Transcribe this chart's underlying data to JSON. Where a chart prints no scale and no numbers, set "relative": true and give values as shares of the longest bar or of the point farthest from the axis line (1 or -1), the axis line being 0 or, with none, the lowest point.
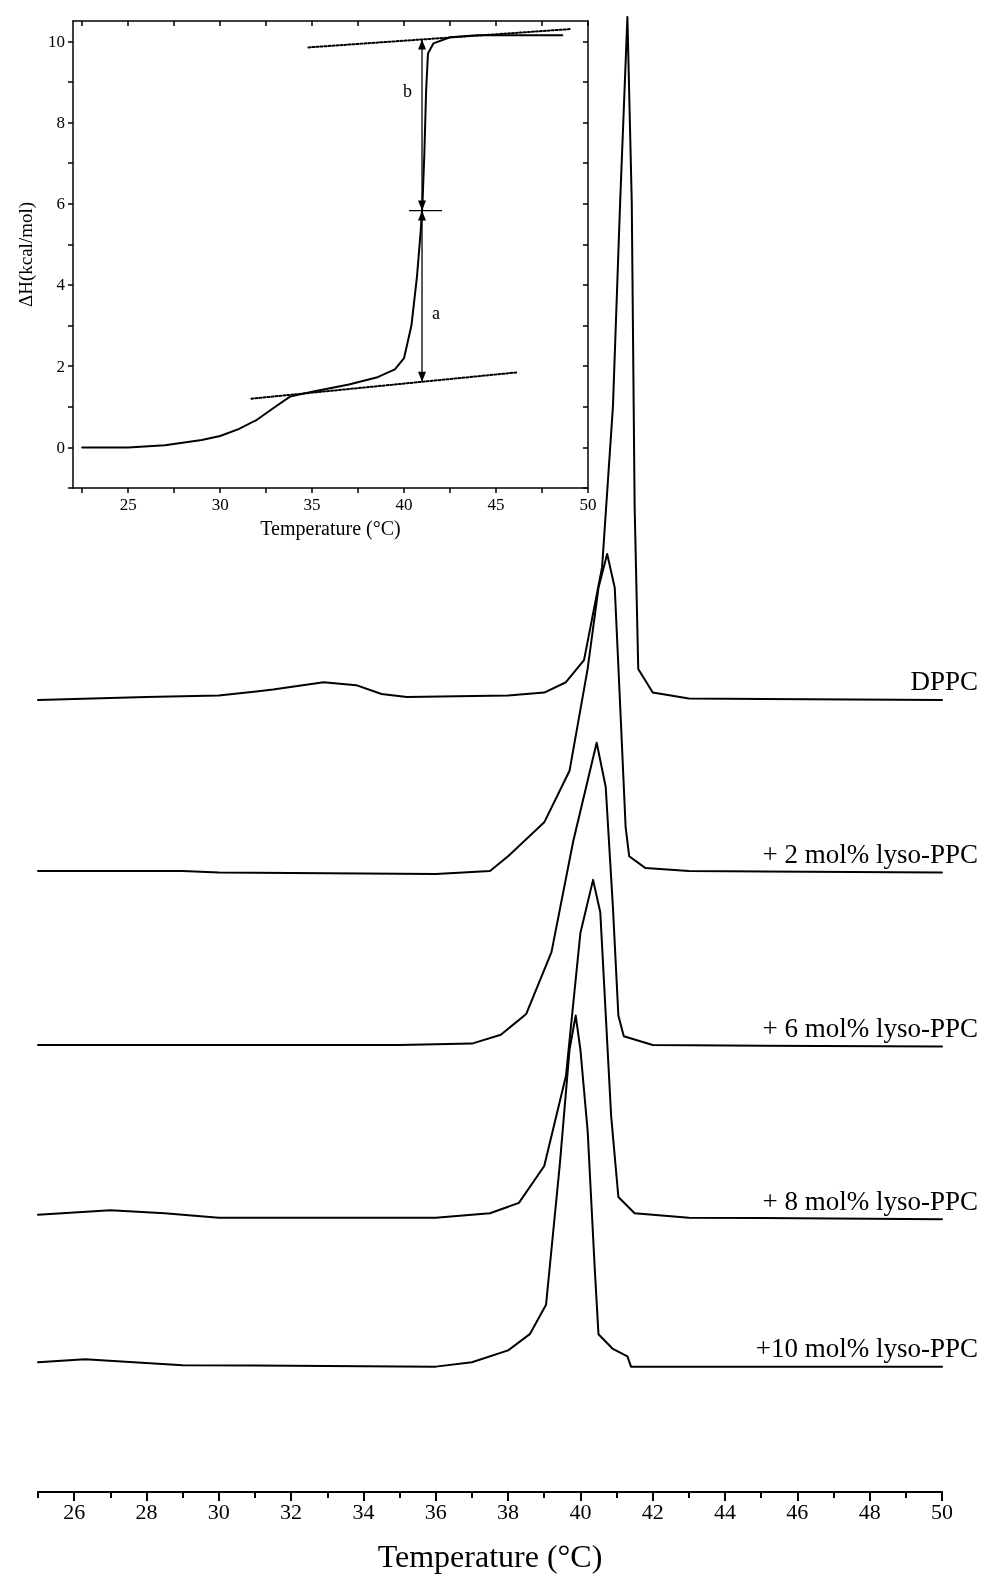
{
  "chart_data": [
    {
      "type": "line",
      "relative": true,
      "tick_labels": "x",
      "xlabel": "Temperature (°C)",
      "xlim": [
        25,
        50
      ],
      "xticks": [
        {
          "value": 25,
          "label": null
        },
        26,
        {
          "value": 27,
          "label": null
        },
        28,
        {
          "value": 29,
          "label": null
        },
        30,
        {
          "value": 31,
          "label": null
        },
        32,
        {
          "value": 33,
          "label": null
        },
        34,
        {
          "value": 35,
          "label": null
        },
        36,
        {
          "value": 37,
          "label": null
        },
        38,
        {
          "value": 39,
          "label": null
        },
        40,
        {
          "value": 41,
          "label": null
        },
        42,
        {
          "value": 43,
          "label": null
        },
        44,
        {
          "value": 45,
          "label": null
        },
        46,
        {
          "value": 47,
          "label": null
        },
        48,
        {
          "value": 49,
          "label": null
        },
        50
      ],
      "series": [
        {
          "name": "DPPC",
          "color": "#000000",
          "x": [
            25,
            28,
            30,
            31.5,
            32.9,
            33.8,
            34.5,
            35.2,
            38,
            39,
            39.6,
            40.1,
            40.6,
            40.9,
            41.1,
            41.3,
            41.42,
            41.5,
            41.6,
            42,
            43,
            50
          ],
          "values": [
            0.537,
            0.539,
            0.54,
            0.544,
            0.549,
            0.547,
            0.541,
            0.539,
            0.54,
            0.542,
            0.549,
            0.564,
            0.627,
            0.736,
            0.875,
            1.0,
            0.875,
            0.668,
            0.558,
            0.542,
            0.538,
            0.537
          ]
        },
        {
          "name": "+ 2 mol% lyso-PPC",
          "color": "#000000",
          "x": [
            25,
            27,
            29,
            30,
            36,
            37.5,
            38,
            39,
            39.7,
            40.2,
            40.5,
            40.74,
            40.95,
            41.1,
            41.25,
            41.35,
            41.8,
            43,
            50
          ],
          "values": [
            0.421,
            0.421,
            0.421,
            0.42,
            0.419,
            0.421,
            0.431,
            0.454,
            0.489,
            0.558,
            0.613,
            0.636,
            0.613,
            0.533,
            0.451,
            0.431,
            0.423,
            0.421,
            0.42
          ]
        },
        {
          "name": "+ 6 mol% lyso-PPC",
          "color": "#000000",
          "x": [
            25,
            30,
            35,
            37,
            37.8,
            38.5,
            39.2,
            39.8,
            40.45,
            40.7,
            40.9,
            41.05,
            41.2,
            42,
            50
          ],
          "values": [
            0.303,
            0.303,
            0.303,
            0.304,
            0.31,
            0.324,
            0.366,
            0.441,
            0.508,
            0.478,
            0.396,
            0.323,
            0.309,
            0.303,
            0.302
          ]
        },
        {
          "name": "+ 8 mol% lyso-PPC",
          "color": "#000000",
          "x": [
            25,
            27,
            28.5,
            30,
            36,
            37.5,
            38.3,
            39,
            39.6,
            40,
            40.35,
            40.55,
            40.7,
            40.85,
            41.05,
            41.5,
            43,
            50
          ],
          "values": [
            0.188,
            0.191,
            0.189,
            0.186,
            0.186,
            0.189,
            0.196,
            0.221,
            0.282,
            0.379,
            0.415,
            0.393,
            0.324,
            0.255,
            0.2,
            0.189,
            0.186,
            0.185
          ]
        },
        {
          "name": "+10 mol% lyso-PPC",
          "color": "#000000",
          "x": [
            25,
            26.3,
            29,
            36,
            37,
            38,
            38.6,
            39.05,
            39.43,
            39.7,
            39.87,
            40,
            40.2,
            40.4,
            40.5,
            40.9,
            41.3,
            41.4,
            43,
            50
          ],
          "values": [
            0.088,
            0.09,
            0.086,
            0.085,
            0.088,
            0.096,
            0.107,
            0.127,
            0.222,
            0.3,
            0.323,
            0.3,
            0.245,
            0.15,
            0.107,
            0.097,
            0.092,
            0.085,
            0.085,
            0.085
          ]
        }
      ]
    },
    {
      "type": "line",
      "xlabel": "Temperature (°C)",
      "ylabel": "ΔH(kcal/mol)",
      "xlim": [
        22,
        50
      ],
      "ylim": [
        -1,
        10.5
      ],
      "xticks": [
        {
          "value": 22.5,
          "label": null
        },
        25,
        {
          "value": 27.5,
          "label": null
        },
        30,
        {
          "value": 32.5,
          "label": null
        },
        35,
        {
          "value": 37.5,
          "label": null
        },
        40,
        {
          "value": 42.5,
          "label": null
        },
        45,
        {
          "value": 47.5,
          "label": null
        },
        50
      ],
      "yticks": [
        {
          "value": -1,
          "label": null
        },
        0,
        {
          "value": 1,
          "label": null
        },
        2,
        {
          "value": 3,
          "label": null
        },
        4,
        {
          "value": 5,
          "label": null
        },
        6,
        {
          "value": 7,
          "label": null
        },
        8,
        {
          "value": 9,
          "label": null
        },
        10
      ],
      "annotations": [
        "a",
        "b"
      ],
      "series": [
        {
          "color": "#000000",
          "x": [
            22.5,
            25,
            27,
            29,
            30,
            31,
            32,
            33,
            33.8,
            35,
            37,
            38.5,
            39.5,
            40,
            40.4,
            40.7,
            40.9,
            41,
            41.1,
            41.2,
            41.3,
            41.6,
            42.5,
            44,
            48.6
          ],
          "values": [
            0,
            0,
            0.05,
            0.18,
            0.28,
            0.45,
            0.68,
            1.0,
            1.25,
            1.37,
            1.55,
            1.72,
            1.92,
            2.2,
            3.0,
            4.2,
            5.3,
            6.0,
            7.2,
            8.8,
            9.7,
            9.95,
            10.1,
            10.15,
            10.15
          ]
        },
        {
          "type": "line",
          "line_style": "dotted",
          "color": "#000000",
          "x": [
            31.7,
            46.2
          ],
          "values": [
            1.2,
            1.85
          ]
        },
        {
          "type": "line",
          "line_style": "dotted",
          "color": "#000000",
          "x": [
            34.8,
            49
          ],
          "values": [
            9.85,
            10.3
          ]
        }
      ]
    }
  ]
}
